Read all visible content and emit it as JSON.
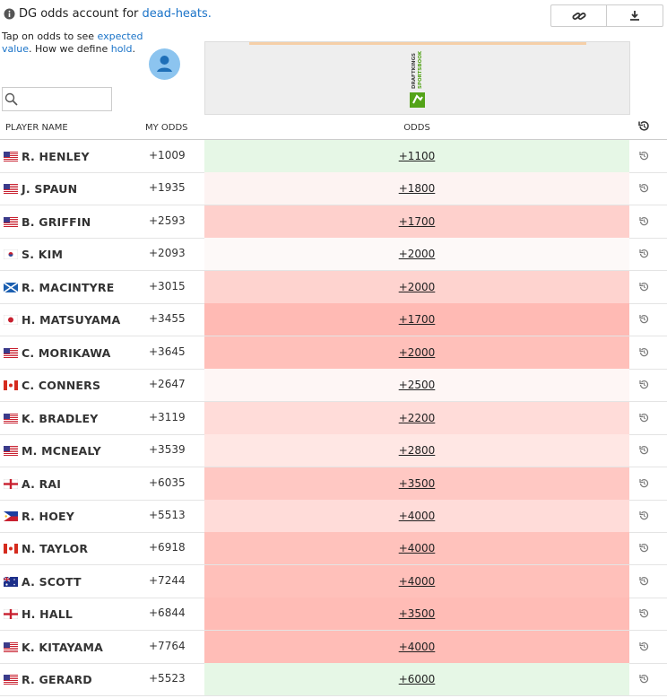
{
  "header": {
    "notice_prefix": "DG odds account for",
    "notice_link": "dead-heats.",
    "tip_1": "Tap on odds to see",
    "tip_link_1": "expected value",
    "tip_2": ". How we define",
    "tip_link_2": "hold",
    "tip_3": "."
  },
  "sportsbook": {
    "logo_line_1": "DRAFTKINGS",
    "logo_line_2": "SPORTSBOOK"
  },
  "table": {
    "columns": [
      "PLAYER NAME",
      "MY ODDS",
      "ODDS"
    ],
    "rows": [
      {
        "flag": "us",
        "name": "R. HENLEY",
        "my_odds": "+1009",
        "odds": "+1100",
        "color": "#e6f7e6"
      },
      {
        "flag": "us",
        "name": "J. SPAUN",
        "my_odds": "+1935",
        "odds": "+1800",
        "color": "#fdf3f2"
      },
      {
        "flag": "us",
        "name": "B. GRIFFIN",
        "my_odds": "+2593",
        "odds": "+1700",
        "color": "#fed0cc"
      },
      {
        "flag": "kr",
        "name": "S. KIM",
        "my_odds": "+2093",
        "odds": "+2000",
        "color": "#fdf9f8"
      },
      {
        "flag": "sct",
        "name": "R. MACINTYRE",
        "my_odds": "+3015",
        "odds": "+2000",
        "color": "#fed3cf"
      },
      {
        "flag": "jp",
        "name": "H. MATSUYAMA",
        "my_odds": "+3455",
        "odds": "+1700",
        "color": "#ffbab4"
      },
      {
        "flag": "us",
        "name": "C. MORIKAWA",
        "my_odds": "+3645",
        "odds": "+2000",
        "color": "#ffc0ba"
      },
      {
        "flag": "ca",
        "name": "C. CONNERS",
        "my_odds": "+2647",
        "odds": "+2500",
        "color": "#fef6f5"
      },
      {
        "flag": "us",
        "name": "K. BRADLEY",
        "my_odds": "+3119",
        "odds": "+2200",
        "color": "#ffdcd9"
      },
      {
        "flag": "us",
        "name": "M. MCNEALY",
        "my_odds": "+3539",
        "odds": "+2800",
        "color": "#ffe7e4"
      },
      {
        "flag": "eng",
        "name": "A. RAI",
        "my_odds": "+6035",
        "odds": "+3500",
        "color": "#ffc8c3"
      },
      {
        "flag": "ph",
        "name": "R. HOEY",
        "my_odds": "+5513",
        "odds": "+4000",
        "color": "#ffdcd9"
      },
      {
        "flag": "ca",
        "name": "N. TAYLOR",
        "my_odds": "+6918",
        "odds": "+4000",
        "color": "#ffc2bc"
      },
      {
        "flag": "au",
        "name": "A. SCOTT",
        "my_odds": "+7244",
        "odds": "+4000",
        "color": "#ffc0ba"
      },
      {
        "flag": "eng",
        "name": "H. HALL",
        "my_odds": "+6844",
        "odds": "+3500",
        "color": "#ffbcb6"
      },
      {
        "flag": "us",
        "name": "K. KITAYAMA",
        "my_odds": "+7764",
        "odds": "+4000",
        "color": "#ffbdb7"
      },
      {
        "flag": "us",
        "name": "R. GERARD",
        "my_odds": "+5523",
        "odds": "+6000",
        "color": "#e6f7e6"
      }
    ]
  }
}
